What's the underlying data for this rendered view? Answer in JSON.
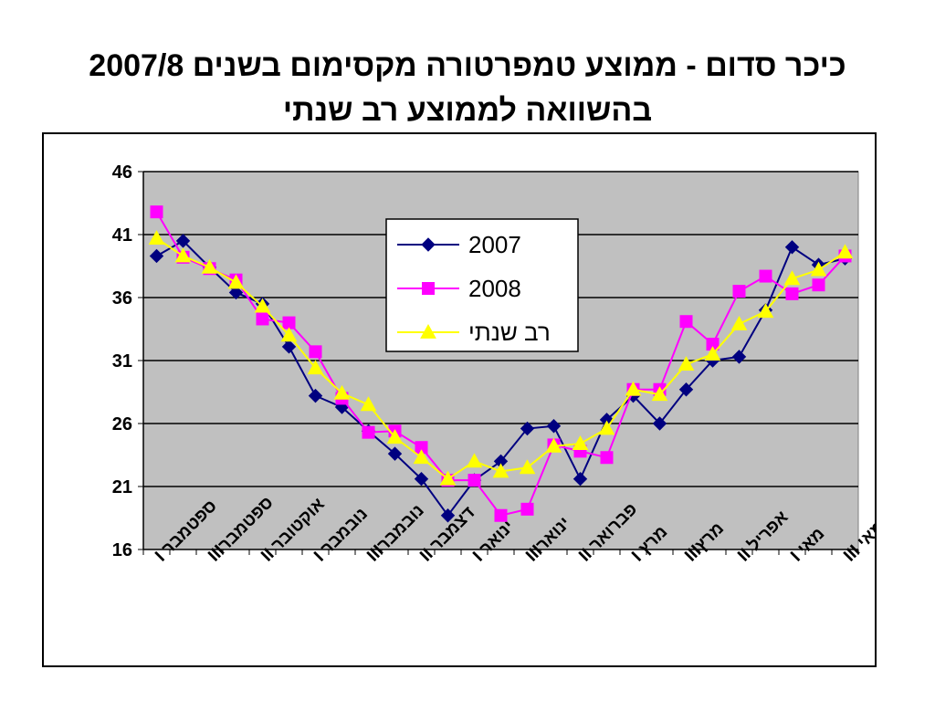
{
  "title": {
    "line1": "כיכר סדום - ממוצע טמפרטורה מקסימום בשנים 2007/8",
    "line2": "בהשוואה לממוצע רב שנתי"
  },
  "chart_data": {
    "type": "line",
    "title": "כיכר סדום - ממוצע טמפרטורה מקסימום בשנים 2007/8 בהשוואה לממוצע רב שנתי",
    "xlabel": "",
    "ylabel": "",
    "ylim": [
      16,
      46
    ],
    "y_ticks": [
      "46",
      "41",
      "36",
      "31",
      "26",
      "21",
      "16"
    ],
    "grid": true,
    "legend_position": "top-center",
    "plot_background": "#c0c0c0",
    "category_labels": [
      "ספטמבר I",
      "ספטמברIII",
      "אוקטובר II",
      "נובמבר I",
      "נובמברIII",
      "דצמבר II",
      "ינואר I",
      "ינוארIII",
      "פברואר II",
      "מרץ I",
      "מרץIII",
      "אפריל II",
      "מאי I",
      "מאי III"
    ],
    "n_points": 27,
    "series": [
      {
        "name": "2007",
        "color": "#000080",
        "marker": "diamond",
        "values": [
          39.3,
          40.5,
          38.4,
          36.4,
          35.5,
          32.1,
          28.2,
          27.3,
          25.4,
          23.6,
          21.6,
          18.7,
          21.5,
          23.0,
          25.6,
          25.8,
          21.6,
          26.3,
          28.2,
          26.0,
          28.7,
          31.0,
          31.3,
          35.0,
          40.0,
          38.6,
          39.1
        ]
      },
      {
        "name": "2008",
        "color": "#ff00ff",
        "marker": "square",
        "values": [
          42.8,
          39.2,
          38.3,
          37.4,
          34.3,
          34.0,
          31.7,
          28.0,
          25.3,
          25.4,
          24.1,
          21.5,
          21.5,
          18.7,
          19.2,
          24.3,
          23.8,
          23.3,
          28.7,
          28.7,
          34.1,
          32.3,
          36.5,
          37.7,
          36.3,
          37.0,
          39.3
        ]
      },
      {
        "name": "רב שנתי",
        "color": "#ffff00",
        "marker": "triangle",
        "values": [
          40.7,
          39.3,
          38.4,
          37.2,
          35.3,
          33.0,
          30.4,
          28.4,
          27.5,
          24.9,
          23.3,
          21.6,
          23.0,
          22.2,
          22.5,
          24.2,
          24.4,
          25.6,
          28.7,
          28.3,
          30.7,
          31.5,
          33.9,
          34.9,
          37.5,
          38.2,
          39.6
        ]
      }
    ]
  }
}
